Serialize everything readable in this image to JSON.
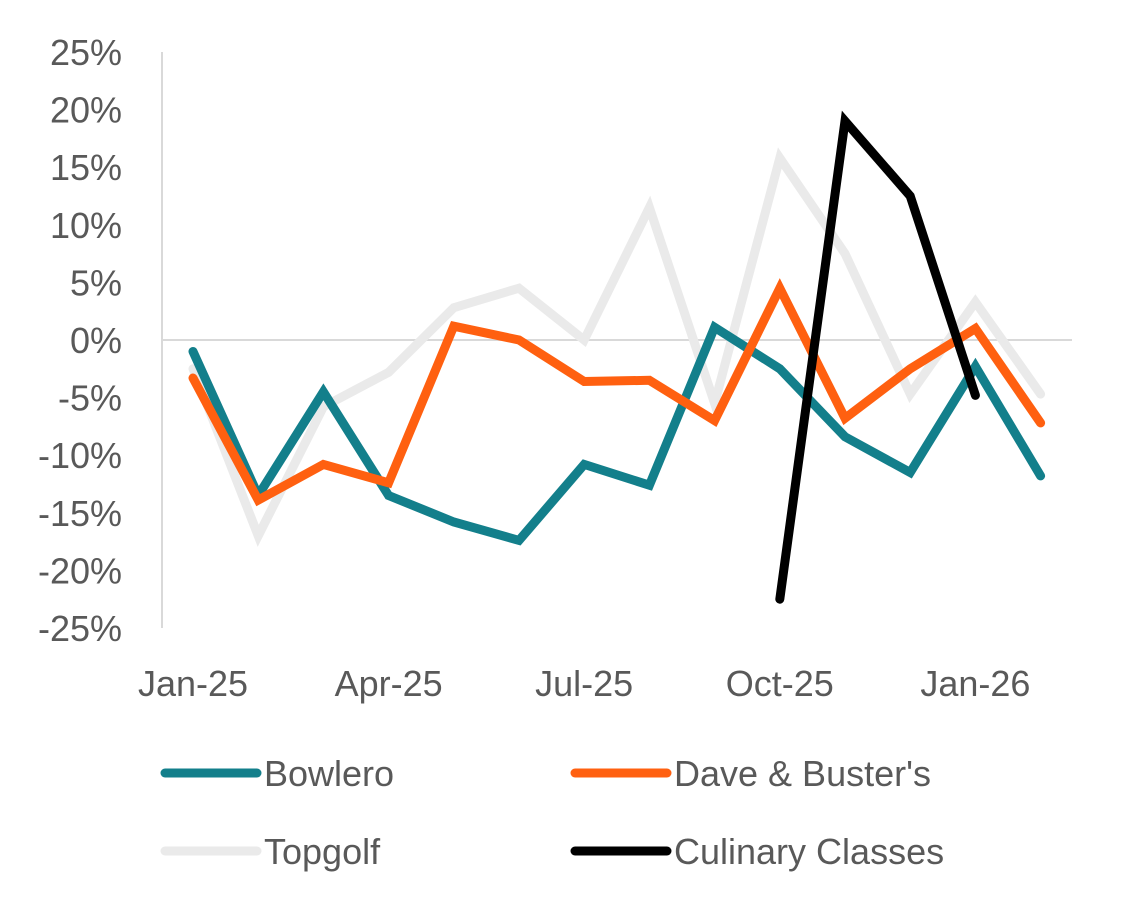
{
  "chart_data": {
    "type": "line",
    "title": "",
    "xlabel": "",
    "ylabel": "",
    "x": [
      "Jan-25",
      "Feb-25",
      "Mar-25",
      "Apr-25",
      "May-25",
      "Jun-25",
      "Jul-25",
      "Aug-25",
      "Sep-25",
      "Oct-25",
      "Nov-25",
      "Dec-25",
      "Jan-26",
      "Feb-26"
    ],
    "x_tick_labels": [
      "Jan-25",
      "Apr-25",
      "Jul-25",
      "Oct-25",
      "Jan-26"
    ],
    "y_tick_labels": [
      "25%",
      "20%",
      "15%",
      "10%",
      "5%",
      "0%",
      "-5%",
      "-10%",
      "-15%",
      "-20%",
      "-25%"
    ],
    "ylim": [
      -25,
      25
    ],
    "y_unit": "%",
    "grid": false,
    "zero_line": true,
    "legend_position": "bottom",
    "series": [
      {
        "name": "Bowlero",
        "color": "#137F8B",
        "values": [
          -1.0,
          -13.5,
          -4.5,
          -13.5,
          -15.8,
          -17.4,
          -10.8,
          -12.6,
          1.1,
          -2.5,
          -8.4,
          -11.5,
          -2.3,
          -11.8
        ]
      },
      {
        "name": "Dave & Buster's",
        "color": "#FF6010",
        "values": [
          -3.3,
          -13.9,
          -10.8,
          -12.4,
          1.2,
          0.0,
          -3.6,
          -3.5,
          -7.0,
          4.5,
          -6.8,
          -2.5,
          1.0,
          -7.2
        ]
      },
      {
        "name": "Topgolf",
        "color": "#EAEAEA",
        "values": [
          -2.5,
          -17.0,
          -5.8,
          -2.8,
          2.8,
          4.5,
          0.0,
          11.5,
          -5.5,
          15.8,
          7.5,
          -4.7,
          3.3,
          -4.7
        ]
      },
      {
        "name": "Culinary Classes",
        "color": "#000000",
        "values": [
          null,
          null,
          null,
          null,
          null,
          null,
          null,
          null,
          null,
          -22.5,
          19.0,
          12.5,
          -4.8,
          null
        ]
      }
    ]
  }
}
